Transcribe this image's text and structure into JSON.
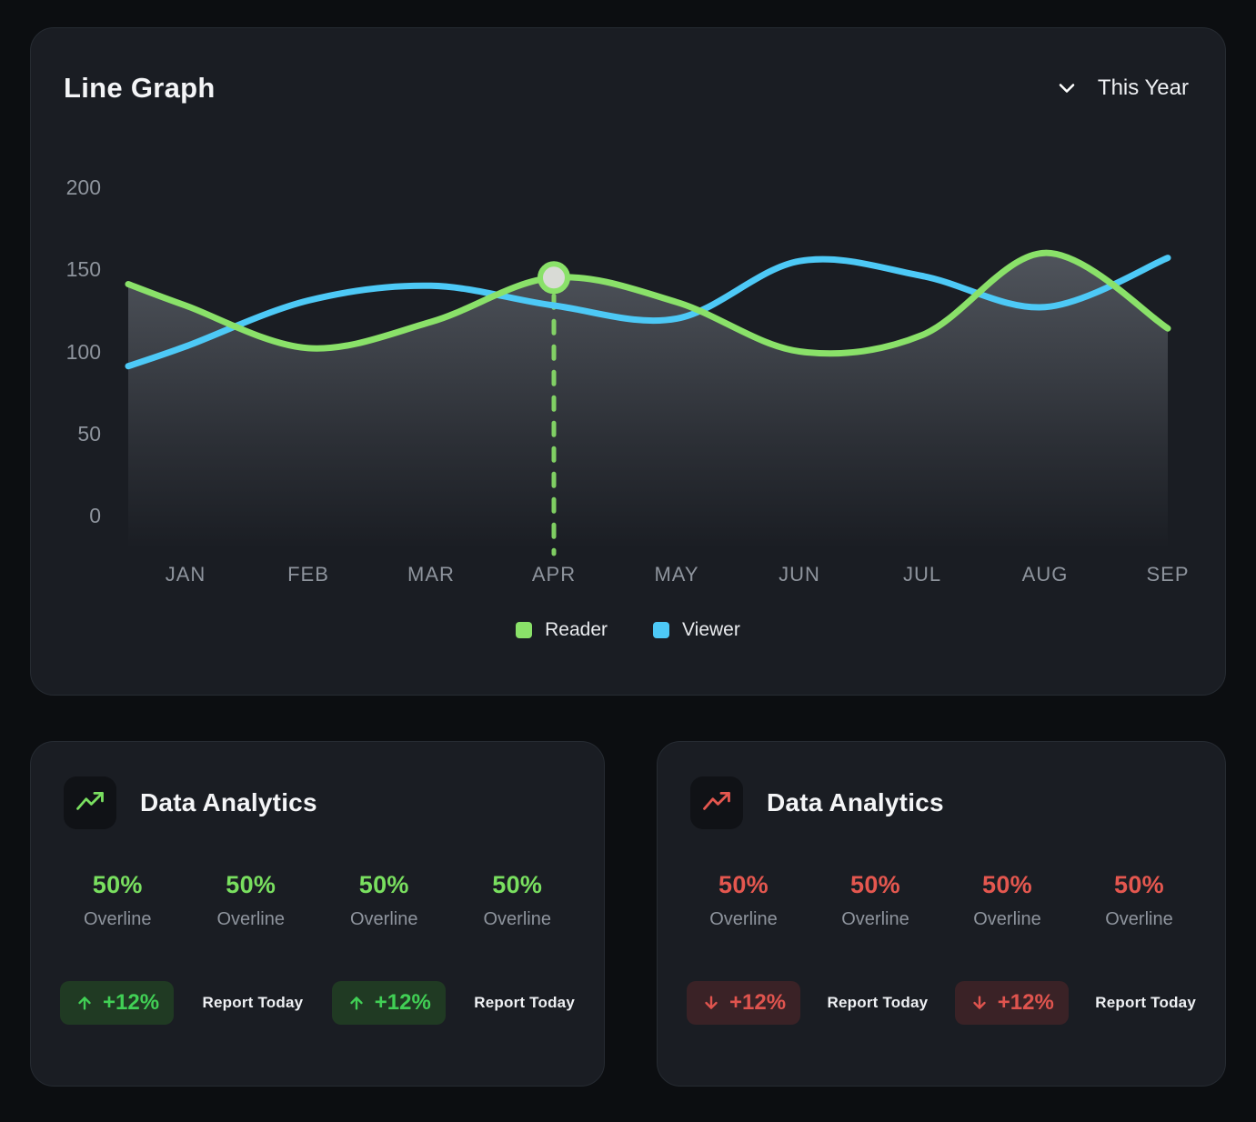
{
  "line_graph_card": {
    "title": "Line Graph",
    "period_selector": {
      "label": "This Year"
    }
  },
  "chart_data": {
    "type": "line",
    "title": "Line Graph",
    "categories": [
      "JAN",
      "FEB",
      "MAR",
      "APR",
      "MAY",
      "JUN",
      "JUL",
      "AUG",
      "SEP"
    ],
    "y_ticks": [
      200,
      150,
      100,
      50,
      0
    ],
    "ylim": [
      0,
      200
    ],
    "grid": false,
    "legend_position": "bottom",
    "series": [
      {
        "name": "Reader",
        "color": "#8ae169",
        "lead_value": 141,
        "values": [
          128,
          102,
          118,
          145,
          130,
          100,
          110,
          160,
          114
        ]
      },
      {
        "name": "Viewer",
        "color": "#4dc9f6",
        "lead_value": 91,
        "values": [
          103,
          131,
          140,
          128,
          120,
          155,
          146,
          127,
          157
        ]
      }
    ],
    "area_fill_series": "Reader",
    "highlight": {
      "series": "Reader",
      "category": "APR",
      "value": 145,
      "marker": true,
      "dashed_line": true,
      "marker_fill": "#d9dbd6"
    }
  },
  "analytics_cards": [
    {
      "title": "Data Analytics",
      "icon": "trend-up-icon",
      "accent": "#41cf55",
      "stats": [
        {
          "value": "50%",
          "label": "Overline"
        },
        {
          "value": "50%",
          "label": "Overline"
        },
        {
          "value": "50%",
          "label": "Overline"
        },
        {
          "value": "50%",
          "label": "Overline"
        }
      ],
      "badge_rows": [
        {
          "badge": {
            "direction": "up",
            "label": "+12%"
          },
          "report": "Report Today"
        },
        {
          "badge": {
            "direction": "up",
            "label": "+12%"
          },
          "report": "Report Today"
        }
      ]
    },
    {
      "title": "Data Analytics",
      "icon": "trend-up-icon",
      "accent": "#df544e",
      "stats": [
        {
          "value": "50%",
          "label": "Overline"
        },
        {
          "value": "50%",
          "label": "Overline"
        },
        {
          "value": "50%",
          "label": "Overline"
        },
        {
          "value": "50%",
          "label": "Overline"
        }
      ],
      "badge_rows": [
        {
          "badge": {
            "direction": "down",
            "label": "+12%"
          },
          "report": "Report Today"
        },
        {
          "badge": {
            "direction": "down",
            "label": "+12%"
          },
          "report": "Report Today"
        }
      ]
    }
  ]
}
